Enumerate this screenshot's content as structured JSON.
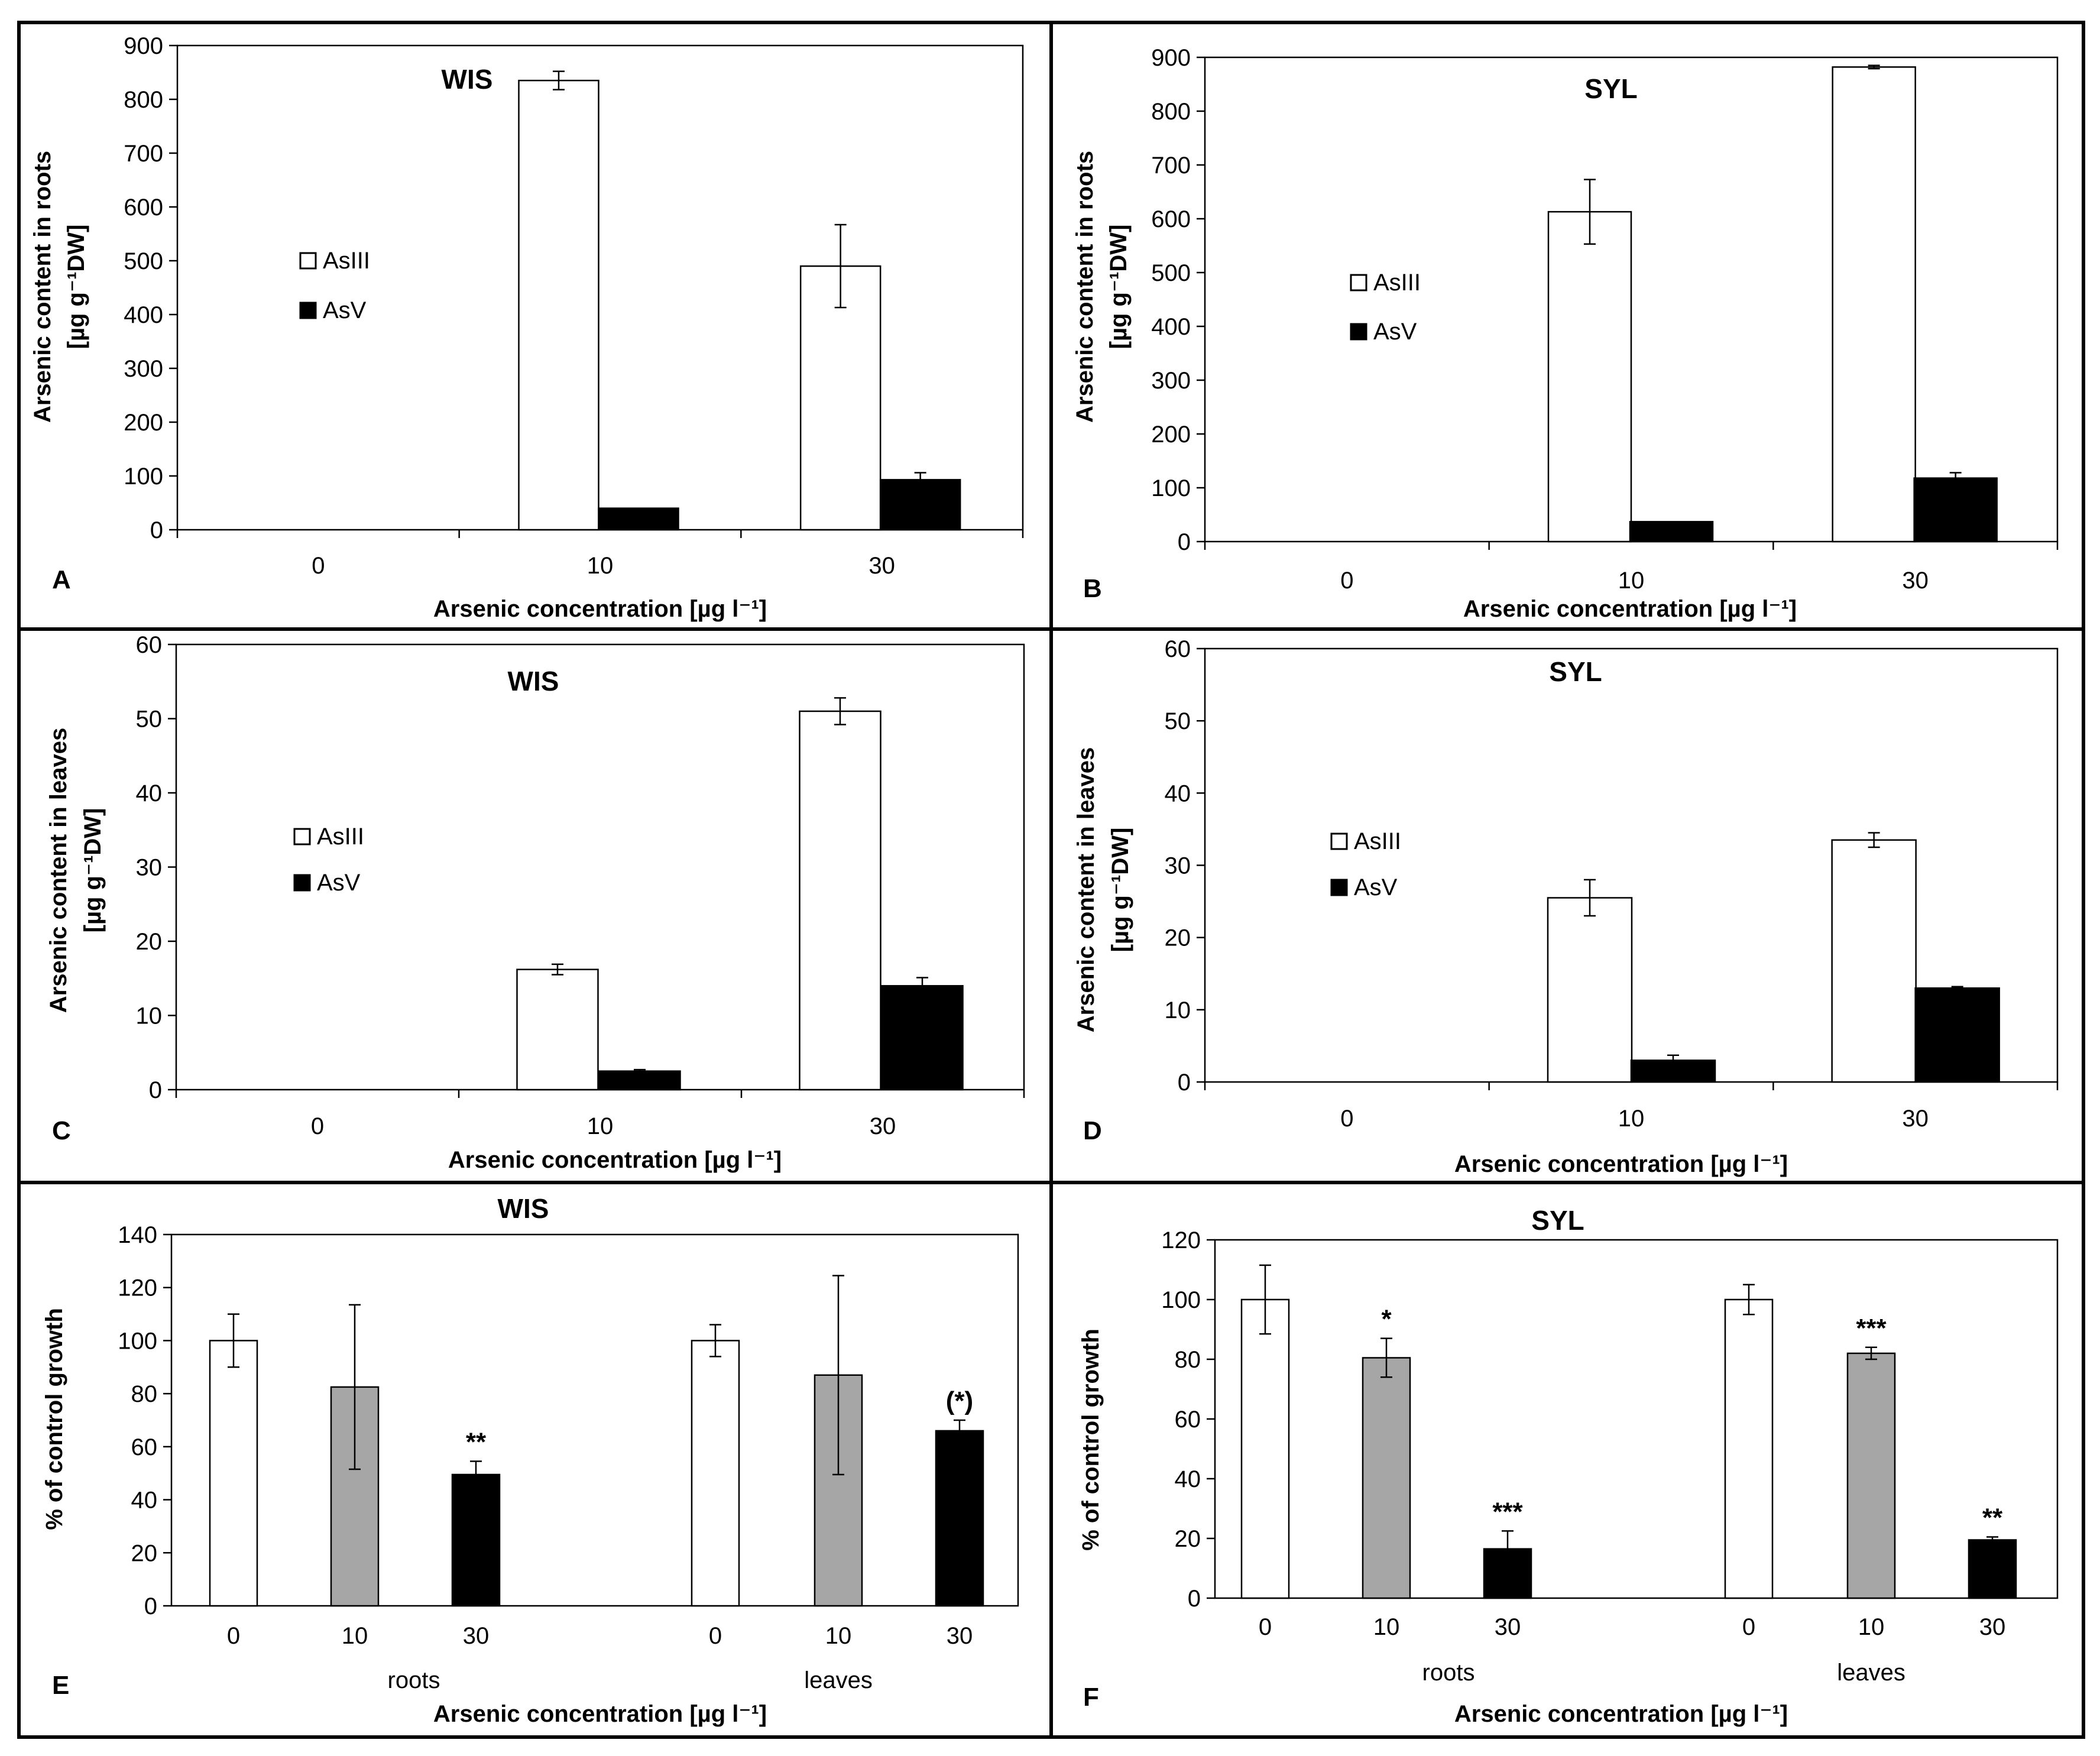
{
  "figure": {
    "panels_order": [
      "A",
      "B",
      "C",
      "D",
      "E",
      "F"
    ]
  },
  "chart_data": [
    {
      "id": "A",
      "type": "bar",
      "panel_letter": "A",
      "title": "WIS",
      "xlabel": "Arsenic concentration [µg l⁻¹]",
      "ylabel_line1": "Arsenic content in roots",
      "ylabel_line2": "[µg g⁻¹DW]",
      "categories": [
        "0",
        "10",
        "30"
      ],
      "yticks": [
        "0",
        "100",
        "200",
        "300",
        "400",
        "500",
        "600",
        "700",
        "800",
        "900"
      ],
      "ylim": [
        0,
        900
      ],
      "legend": [
        "AsIII",
        "AsV"
      ],
      "series": [
        {
          "name": "AsIII",
          "fill": "#ffffff",
          "values": [
            0,
            835,
            490
          ],
          "errors": [
            0,
            17,
            77
          ]
        },
        {
          "name": "AsV",
          "fill": "#000000",
          "values": [
            0,
            40,
            93
          ],
          "errors": [
            0,
            0,
            13
          ]
        }
      ]
    },
    {
      "id": "B",
      "type": "bar",
      "panel_letter": "B",
      "title": "SYL",
      "xlabel": "Arsenic concentration [µg l⁻¹]",
      "ylabel_line1": "Arsenic content in roots",
      "ylabel_line2": "[µg g⁻¹DW]",
      "categories": [
        "0",
        "10",
        "30"
      ],
      "yticks": [
        "0",
        "100",
        "200",
        "300",
        "400",
        "500",
        "600",
        "700",
        "800",
        "900"
      ],
      "ylim": [
        0,
        900
      ],
      "legend": [
        "AsIII",
        "AsV"
      ],
      "series": [
        {
          "name": "AsIII",
          "fill": "#ffffff",
          "values": [
            0,
            613,
            882
          ],
          "errors": [
            0,
            60,
            3
          ]
        },
        {
          "name": "AsV",
          "fill": "#000000",
          "values": [
            0,
            37,
            118
          ],
          "errors": [
            0,
            0,
            10
          ]
        }
      ]
    },
    {
      "id": "C",
      "type": "bar",
      "panel_letter": "C",
      "title": "WIS",
      "xlabel": "Arsenic concentration [µg l⁻¹]",
      "ylabel_line1": "Arsenic content in leaves",
      "ylabel_line2": "[µg g⁻¹DW]",
      "categories": [
        "0",
        "10",
        "30"
      ],
      "yticks": [
        "0",
        "10",
        "20",
        "30",
        "40",
        "50",
        "60"
      ],
      "ylim": [
        0,
        60
      ],
      "legend": [
        "AsIII",
        "AsV"
      ],
      "series": [
        {
          "name": "AsIII",
          "fill": "#ffffff",
          "values": [
            0,
            16.2,
            51
          ],
          "errors": [
            0,
            0.7,
            1.8
          ]
        },
        {
          "name": "AsV",
          "fill": "#000000",
          "values": [
            0,
            2.5,
            14
          ],
          "errors": [
            0,
            0.2,
            1.1
          ]
        }
      ]
    },
    {
      "id": "D",
      "type": "bar",
      "panel_letter": "D",
      "title": "SYL",
      "xlabel": "Arsenic concentration [µg l⁻¹]",
      "ylabel_line1": "Arsenic content in leaves",
      "ylabel_line2": "[µg g⁻¹DW]",
      "categories": [
        "0",
        "10",
        "30"
      ],
      "yticks": [
        "0",
        "10",
        "20",
        "30",
        "40",
        "50",
        "60"
      ],
      "ylim": [
        0,
        60
      ],
      "legend": [
        "AsIII",
        "AsV"
      ],
      "series": [
        {
          "name": "AsIII",
          "fill": "#ffffff",
          "values": [
            0,
            25.5,
            33.5
          ],
          "errors": [
            0,
            2.5,
            1
          ]
        },
        {
          "name": "AsV",
          "fill": "#000000",
          "values": [
            0,
            3,
            13
          ],
          "errors": [
            0,
            0.7,
            0.2
          ]
        }
      ]
    },
    {
      "id": "E",
      "type": "bar",
      "panel_letter": "E",
      "title": "WIS",
      "xlabel": "Arsenic concentration [µg l⁻¹]",
      "ylabel": "% of control growth",
      "groups": [
        "roots",
        "leaves"
      ],
      "categories": [
        "0",
        "10",
        "30"
      ],
      "yticks": [
        "0",
        "20",
        "40",
        "60",
        "80",
        "100",
        "120",
        "140"
      ],
      "ylim": [
        0,
        140
      ],
      "bars": [
        {
          "group": "roots",
          "category": "0",
          "value": 100,
          "error": 10,
          "fill": "#ffffff",
          "sig": ""
        },
        {
          "group": "roots",
          "category": "10",
          "value": 82.5,
          "error": 31,
          "fill": "#a6a6a6",
          "sig": ""
        },
        {
          "group": "roots",
          "category": "30",
          "value": 49.5,
          "error": 5,
          "fill": "#000000",
          "sig": "**"
        },
        {
          "group": "leaves",
          "category": "0",
          "value": 100,
          "error": 6,
          "fill": "#ffffff",
          "sig": ""
        },
        {
          "group": "leaves",
          "category": "10",
          "value": 87,
          "error": 37.5,
          "fill": "#a6a6a6",
          "sig": ""
        },
        {
          "group": "leaves",
          "category": "30",
          "value": 66,
          "error": 4,
          "fill": "#000000",
          "sig": "(*)"
        }
      ]
    },
    {
      "id": "F",
      "type": "bar",
      "panel_letter": "F",
      "title": "SYL",
      "xlabel": "Arsenic concentration [µg l⁻¹]",
      "ylabel": "% of control growth",
      "groups": [
        "roots",
        "leaves"
      ],
      "categories": [
        "0",
        "10",
        "30"
      ],
      "yticks": [
        "0",
        "20",
        "40",
        "60",
        "80",
        "100",
        "120"
      ],
      "ylim": [
        0,
        120
      ],
      "bars": [
        {
          "group": "roots",
          "category": "0",
          "value": 100,
          "error": 11.5,
          "fill": "#ffffff",
          "sig": ""
        },
        {
          "group": "roots",
          "category": "10",
          "value": 80.5,
          "error": 6.5,
          "fill": "#a6a6a6",
          "sig": "*"
        },
        {
          "group": "roots",
          "category": "30",
          "value": 16.5,
          "error": 6,
          "fill": "#000000",
          "sig": "***"
        },
        {
          "group": "leaves",
          "category": "0",
          "value": 100,
          "error": 5,
          "fill": "#ffffff",
          "sig": ""
        },
        {
          "group": "leaves",
          "category": "10",
          "value": 82,
          "error": 2,
          "fill": "#a6a6a6",
          "sig": "***"
        },
        {
          "group": "leaves",
          "category": "30",
          "value": 19.5,
          "error": 1,
          "fill": "#000000",
          "sig": "**"
        }
      ]
    }
  ]
}
